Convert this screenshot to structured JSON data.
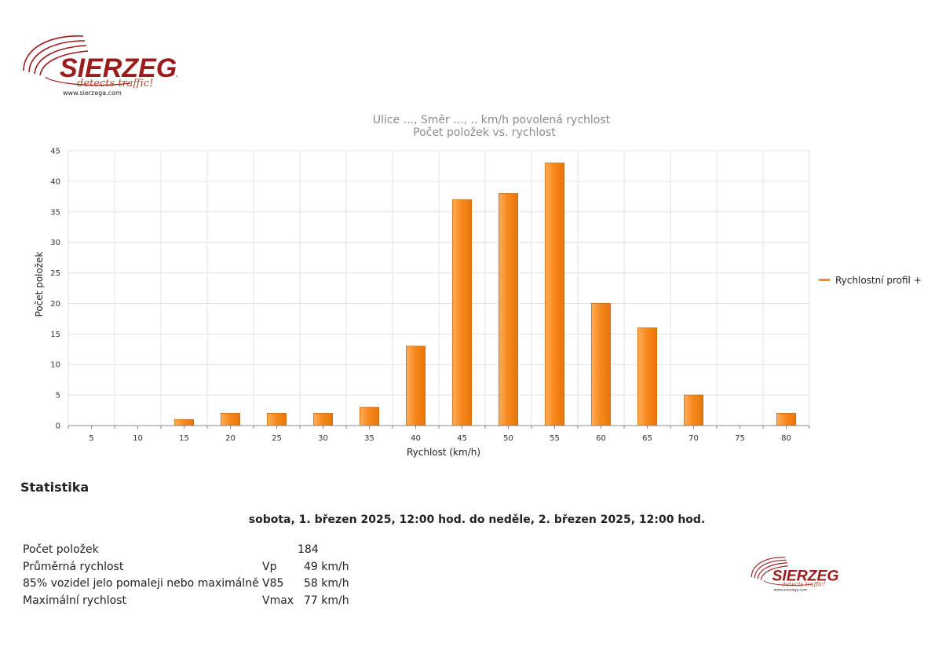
{
  "logo": {
    "word": "SIERZEGA",
    "tagline": "detects traffic!",
    "url": "www.sierzega.com"
  },
  "chart_data": {
    "type": "bar",
    "title": "Ulice ..., Směr ..., .. km/h povolená rychlost",
    "subtitle": "Počet položek vs. rychlost",
    "xlabel": "Rychlost (km/h)",
    "ylabel": "Počet položek",
    "categories": [
      "5",
      "10",
      "15",
      "20",
      "25",
      "30",
      "35",
      "40",
      "45",
      "50",
      "55",
      "60",
      "65",
      "70",
      "75",
      "80"
    ],
    "series": [
      {
        "name": "Rychlostní profil +",
        "values": [
          0,
          0,
          1,
          2,
          2,
          2,
          3,
          13,
          37,
          38,
          43,
          20,
          16,
          5,
          0,
          2
        ]
      }
    ],
    "ylim": [
      0,
      45
    ],
    "yticks": [
      0,
      5,
      10,
      15,
      20,
      25,
      30,
      35,
      40,
      45
    ],
    "grid": true,
    "legend": "right",
    "colors": {
      "bar": "#f7891f",
      "bar_light": "#ffae5c",
      "bar_edge": "#cf6a0c"
    }
  },
  "stats": {
    "heading": "Statistika",
    "period": "sobota, 1. březen 2025, 12:00 hod. do neděle, 2. březen 2025, 12:00 hod.",
    "rows": [
      {
        "label": "Počet položek",
        "symbol": "",
        "value": "184"
      },
      {
        "label": "Průměrná rychlost",
        "symbol": "Vp",
        "value": "49 km/h"
      },
      {
        "label": "85% vozidel jelo pomaleji nebo maximálně",
        "symbol": "V85",
        "value": "58 km/h"
      },
      {
        "label": "Maximální rychlost",
        "symbol": "Vmax",
        "value": "77 km/h"
      }
    ]
  }
}
